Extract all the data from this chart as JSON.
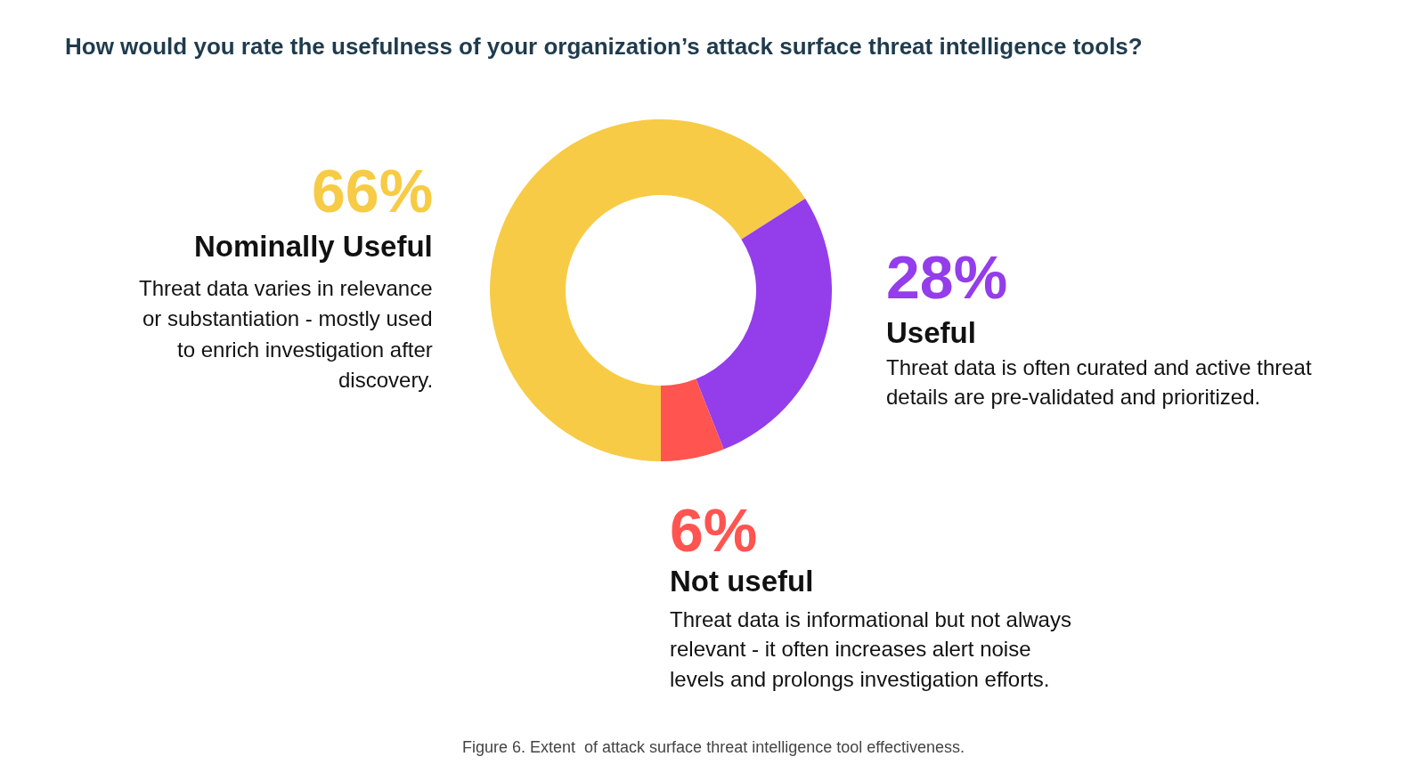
{
  "chart_data": {
    "type": "donut",
    "title": "How would you rate the usefulness of your organization’s attack surface threat intelligence tools?",
    "categories": [
      "Nominally Useful",
      "Useful",
      "Not useful"
    ],
    "values": [
      66,
      28,
      6
    ],
    "colors": [
      "#f7cb45",
      "#943deb",
      "#ff5450"
    ],
    "value_labels": [
      "66%",
      "28%",
      "6%"
    ],
    "annotations": [
      "Threat data varies in relevance\nor substantiation - mostly used\nto enrich investigation after\ndiscovery.",
      "Threat data is often curated and active threat\ndetails are pre-validated and prioritized.",
      "Threat data is informational but not always\nrelevant - it often increases alert noise\nlevels and prolongs investigation efforts.",
      "Figure 6. Extent  of attack surface threat intelligence tool effectiveness."
    ]
  }
}
